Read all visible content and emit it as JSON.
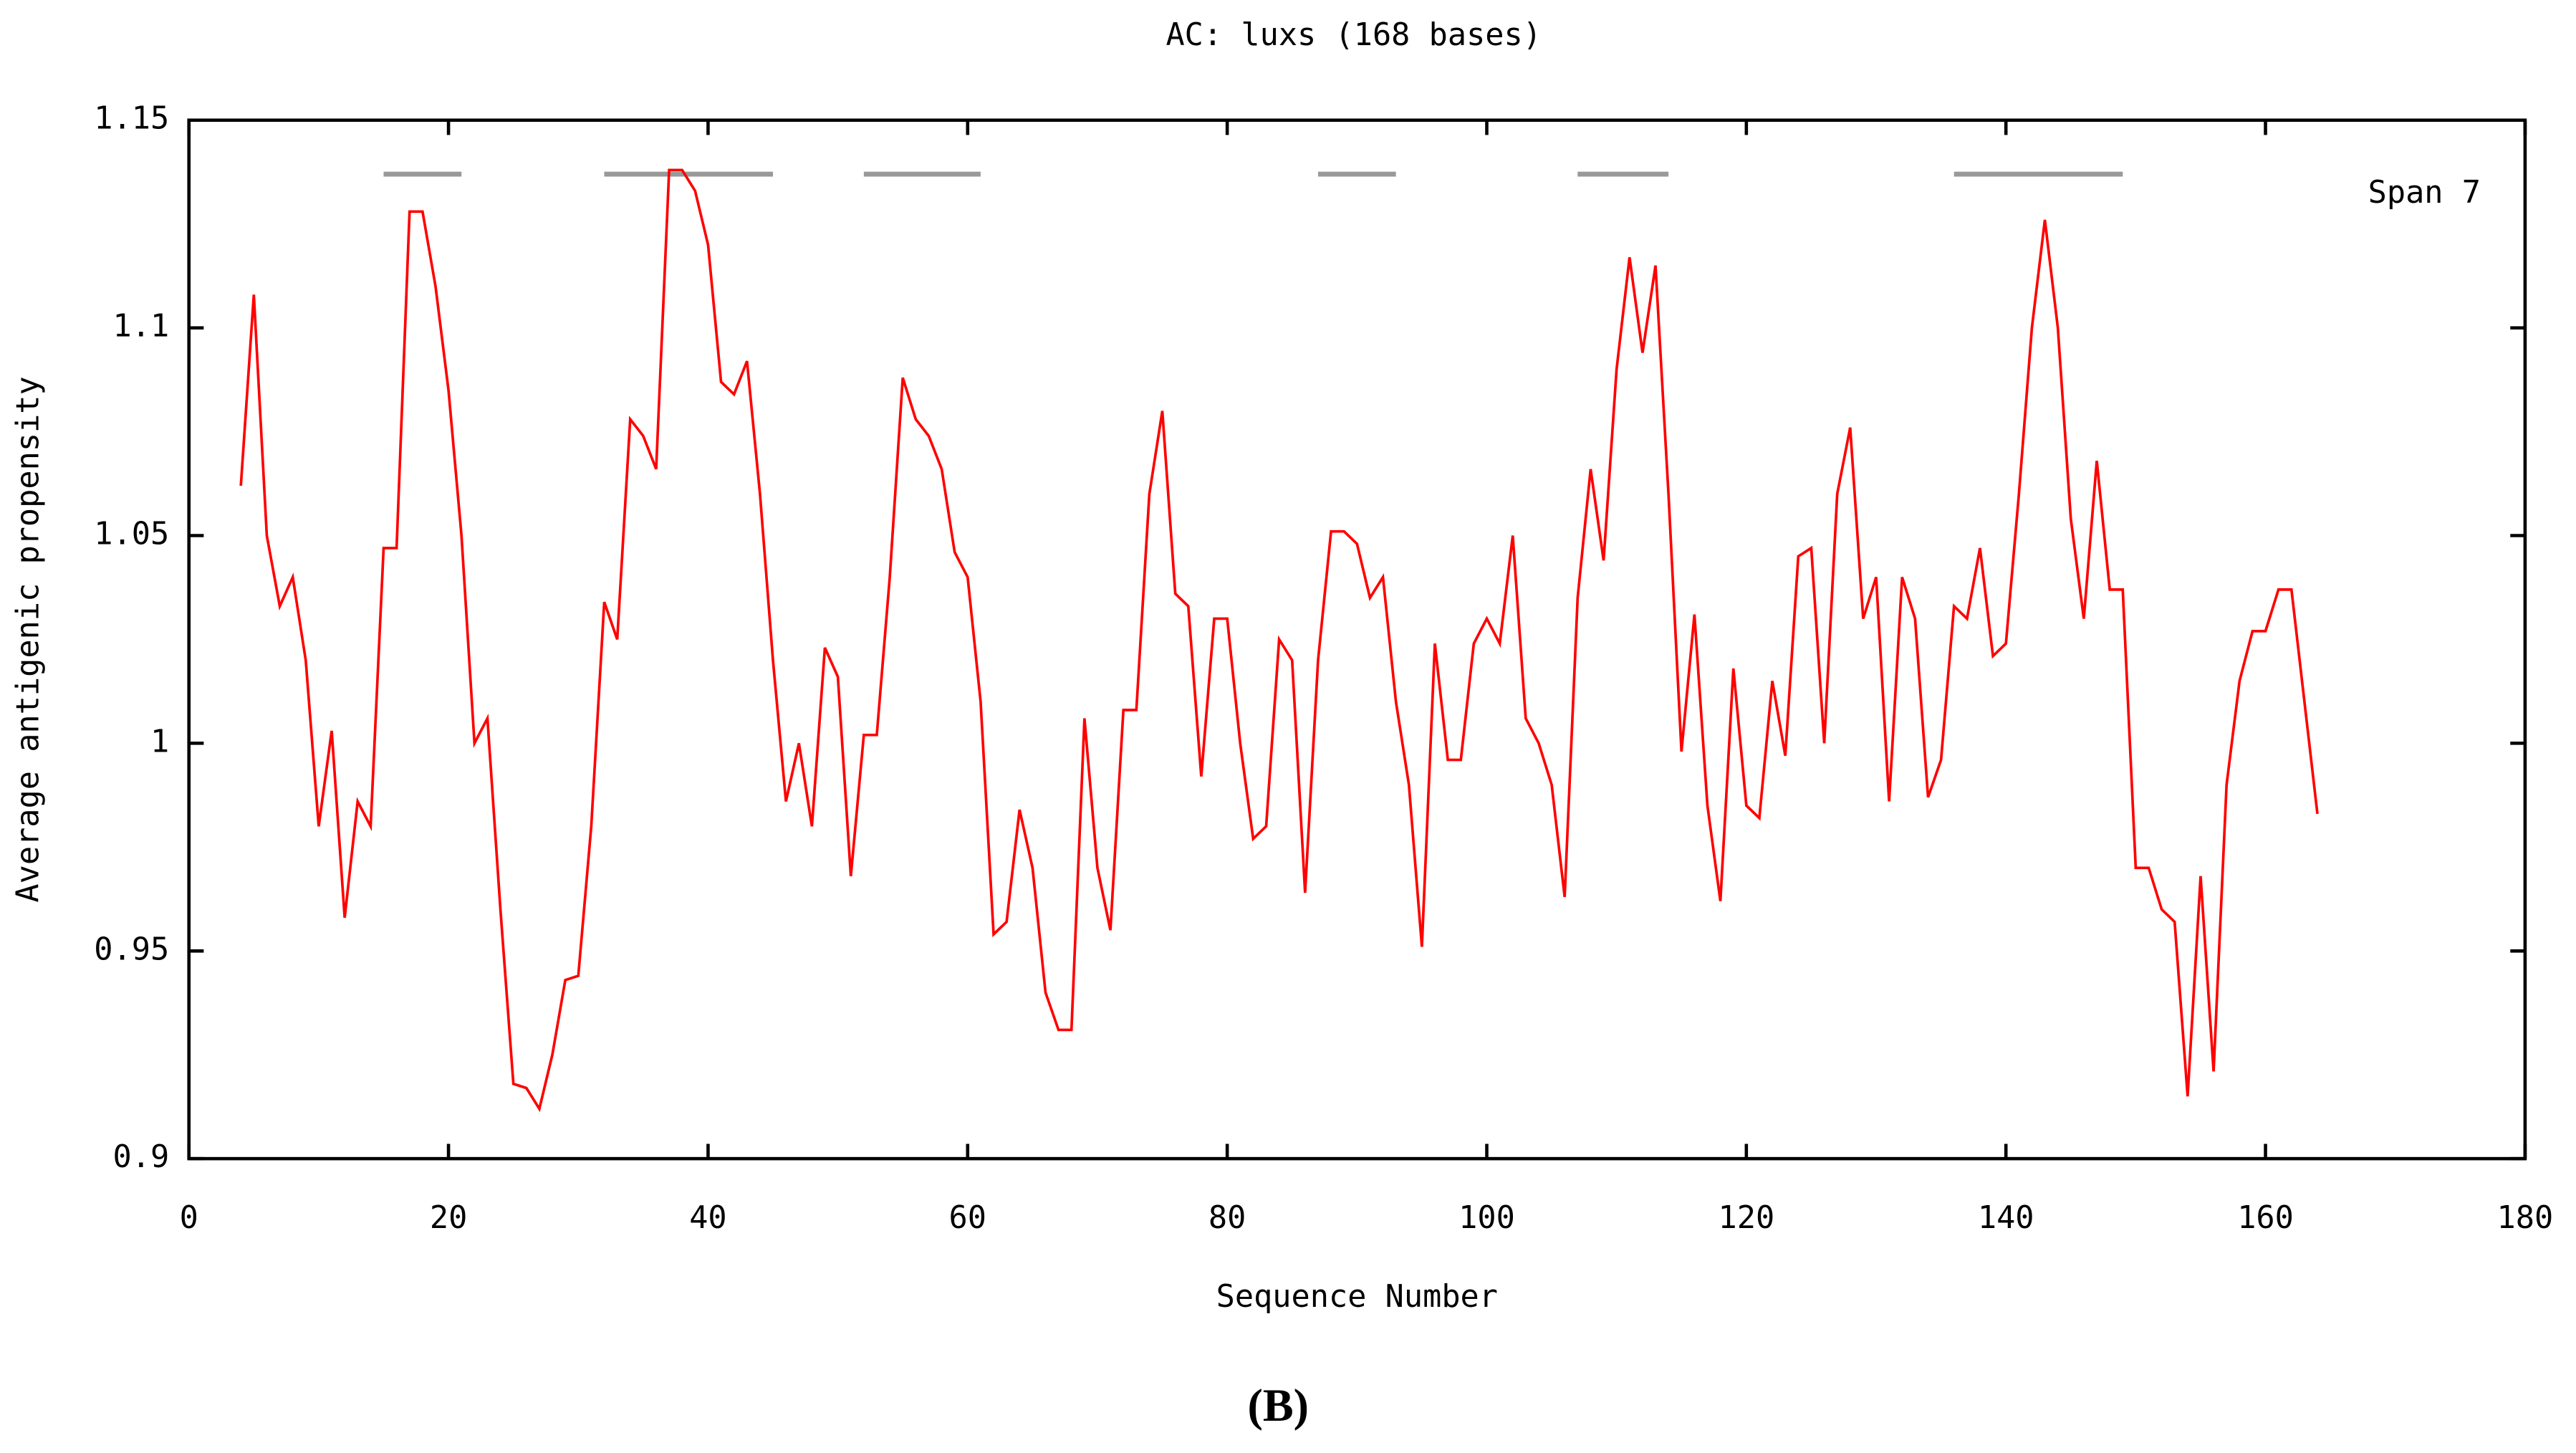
{
  "chart_data": {
    "type": "line",
    "title": "AC: luxs (168 bases)",
    "xlabel": "Sequence Number",
    "ylabel": "Average antigenic propensity",
    "annotation": "Span 7",
    "caption": "(B)",
    "xlim": [
      0,
      180
    ],
    "ylim": [
      0.9,
      1.15
    ],
    "xticks": [
      0,
      20,
      40,
      60,
      80,
      100,
      120,
      140,
      160,
      180
    ],
    "yticks": [
      0.9,
      0.95,
      1,
      1.05,
      1.1,
      1.15
    ],
    "x": [
      4,
      5,
      6,
      7,
      8,
      9,
      10,
      11,
      12,
      13,
      14,
      15,
      16,
      17,
      18,
      19,
      20,
      21,
      22,
      23,
      24,
      25,
      26,
      27,
      28,
      29,
      30,
      31,
      32,
      33,
      34,
      35,
      36,
      37,
      38,
      39,
      40,
      41,
      42,
      43,
      44,
      45,
      46,
      47,
      48,
      49,
      50,
      51,
      52,
      53,
      54,
      55,
      56,
      57,
      58,
      59,
      60,
      61,
      62,
      63,
      64,
      65,
      66,
      67,
      68,
      69,
      70,
      71,
      72,
      73,
      74,
      75,
      76,
      77,
      78,
      79,
      80,
      81,
      82,
      83,
      84,
      85,
      86,
      87,
      88,
      89,
      90,
      91,
      92,
      93,
      94,
      95,
      96,
      97,
      98,
      99,
      100,
      101,
      102,
      103,
      104,
      105,
      106,
      107,
      108,
      109,
      110,
      111,
      112,
      113,
      114,
      115,
      116,
      117,
      118,
      119,
      120,
      121,
      122,
      123,
      124,
      125,
      126,
      127,
      128,
      129,
      130,
      131,
      132,
      133,
      134,
      135,
      136,
      137,
      138,
      139,
      140,
      141,
      142,
      143,
      144,
      145,
      146,
      147,
      148,
      149,
      150,
      151,
      152,
      153,
      154,
      155,
      156,
      157,
      158,
      159,
      160,
      161,
      162,
      163,
      164
    ],
    "series": [
      {
        "color": "#ff0000",
        "values": [
          1.062,
          1.108,
          1.05,
          1.033,
          1.04,
          1.02,
          0.98,
          1.003,
          0.958,
          0.986,
          0.98,
          1.047,
          1.047,
          1.128,
          1.128,
          1.11,
          1.085,
          1.05,
          1.0,
          1.006,
          0.96,
          0.918,
          0.917,
          0.912,
          0.925,
          0.943,
          0.944,
          0.98,
          1.034,
          1.025,
          1.078,
          1.074,
          1.066,
          1.138,
          1.138,
          1.133,
          1.12,
          1.087,
          1.084,
          1.092,
          1.06,
          1.02,
          0.986,
          1.0,
          0.98,
          1.023,
          1.016,
          0.968,
          1.002,
          1.002,
          1.04,
          1.088,
          1.078,
          1.074,
          1.066,
          1.046,
          1.04,
          1.01,
          0.954,
          0.957,
          0.984,
          0.97,
          0.94,
          0.931,
          0.931,
          1.006,
          0.97,
          0.955,
          1.008,
          1.008,
          1.06,
          1.08,
          1.036,
          1.033,
          0.992,
          1.03,
          1.03,
          1.0,
          0.977,
          0.98,
          1.025,
          1.02,
          0.964,
          1.02,
          1.051,
          1.051,
          1.048,
          1.035,
          1.04,
          1.01,
          0.99,
          0.951,
          1.024,
          0.996,
          0.996,
          1.024,
          1.03,
          1.024,
          1.05,
          1.006,
          1.0,
          0.99,
          0.963,
          1.035,
          1.066,
          1.044,
          1.09,
          1.117,
          1.094,
          1.115,
          1.06,
          0.998,
          1.031,
          0.985,
          0.962,
          1.018,
          0.985,
          0.982,
          1.015,
          0.997,
          1.045,
          1.047,
          1.0,
          1.06,
          1.076,
          1.03,
          1.04,
          0.986,
          1.04,
          1.03,
          0.987,
          0.996,
          1.033,
          1.03,
          1.047,
          1.021,
          1.024,
          1.06,
          1.1,
          1.126,
          1.1,
          1.054,
          1.03,
          1.068,
          1.037,
          1.037,
          0.97,
          0.97,
          0.96,
          0.957,
          0.915,
          0.968,
          0.921,
          0.99,
          1.015,
          1.027,
          1.027,
          1.037,
          1.037,
          1.01,
          0.983
        ]
      }
    ],
    "segment_y": 1.137,
    "segment_color": "#999999",
    "segments": [
      {
        "start": 15,
        "end": 21
      },
      {
        "start": 32,
        "end": 45
      },
      {
        "start": 52,
        "end": 61
      },
      {
        "start": 87,
        "end": 93
      },
      {
        "start": 107,
        "end": 114
      },
      {
        "start": 136,
        "end": 149
      }
    ]
  }
}
